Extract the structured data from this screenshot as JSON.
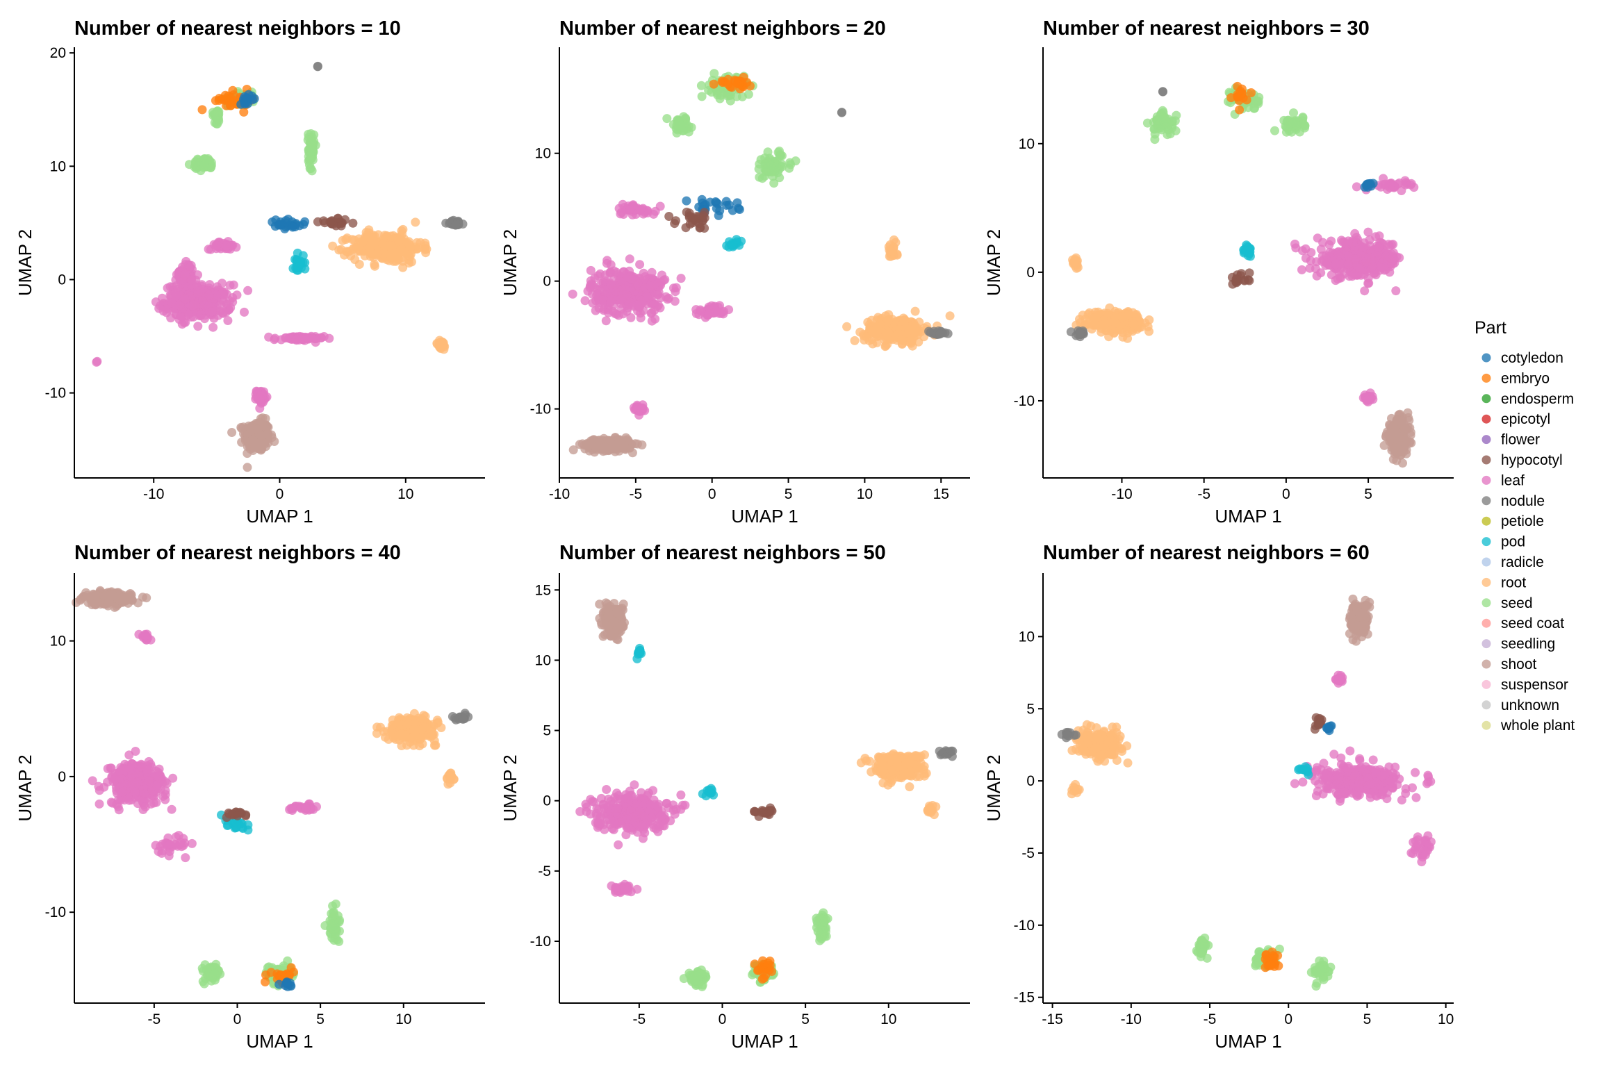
{
  "legend": {
    "title": "Part",
    "entries": [
      {
        "name": "cotyledon",
        "color": "#1f77b4"
      },
      {
        "name": "embryo",
        "color": "#ff7f0e"
      },
      {
        "name": "endosperm",
        "color": "#2ca02c"
      },
      {
        "name": "epicotyl",
        "color": "#d62728"
      },
      {
        "name": "flower",
        "color": "#9467bd"
      },
      {
        "name": "hypocotyl",
        "color": "#8c564b"
      },
      {
        "name": "leaf",
        "color": "#e377c2"
      },
      {
        "name": "nodule",
        "color": "#7f7f7f"
      },
      {
        "name": "petiole",
        "color": "#bcbd22"
      },
      {
        "name": "pod",
        "color": "#17becf"
      },
      {
        "name": "radicle",
        "color": "#aec7e8"
      },
      {
        "name": "root",
        "color": "#ffbb78"
      },
      {
        "name": "seed",
        "color": "#98df8a"
      },
      {
        "name": "seed coat",
        "color": "#ff9896"
      },
      {
        "name": "seedling",
        "color": "#c5b0d5"
      },
      {
        "name": "shoot",
        "color": "#c49c94"
      },
      {
        "name": "suspensor",
        "color": "#f7b6d2"
      },
      {
        "name": "unknown",
        "color": "#c7c7c7"
      },
      {
        "name": "whole plant",
        "color": "#dbdb8d"
      }
    ]
  },
  "chart_data": [
    {
      "type": "scatter",
      "title": "Number of nearest neighbors = 10",
      "xlabel": "UMAP 1",
      "ylabel": "UMAP 2",
      "xlim": [
        -16.3,
        16.3
      ],
      "ylim": [
        -17.5,
        20.5
      ],
      "xticks": [
        -10,
        0,
        10
      ],
      "yticks": [
        -10,
        0,
        10,
        20
      ],
      "clusters": [
        {
          "part": "shoot",
          "x": -1.8,
          "y": -13.8,
          "sx": 0.9,
          "sy": 1.2,
          "n": 260
        },
        {
          "part": "leaf",
          "x": -6.5,
          "y": -2.0,
          "sx": 2.4,
          "sy": 1.4,
          "n": 300
        },
        {
          "part": "leaf",
          "x": -7.5,
          "y": 0.5,
          "sx": 0.6,
          "sy": 1.0,
          "n": 60
        },
        {
          "part": "leaf",
          "x": -1.5,
          "y": -10.3,
          "sx": 0.3,
          "sy": 0.5,
          "n": 40
        },
        {
          "part": "leaf",
          "x": 1.5,
          "y": -5.2,
          "sx": 1.8,
          "sy": 0.2,
          "n": 60
        },
        {
          "part": "leaf",
          "x": -14.5,
          "y": -7.3,
          "sx": 0.1,
          "sy": 0.1,
          "n": 2
        },
        {
          "part": "leaf",
          "x": -4.5,
          "y": 3.0,
          "sx": 1.0,
          "sy": 0.3,
          "n": 40
        },
        {
          "part": "root",
          "x": 8.5,
          "y": 2.8,
          "sx": 2.5,
          "sy": 1.2,
          "n": 260
        },
        {
          "part": "root",
          "x": 12.8,
          "y": -5.8,
          "sx": 0.4,
          "sy": 0.4,
          "n": 30
        },
        {
          "part": "nodule",
          "x": 14.0,
          "y": 5.0,
          "sx": 0.6,
          "sy": 0.2,
          "n": 25
        },
        {
          "part": "seed",
          "x": -6.0,
          "y": 10.2,
          "sx": 0.8,
          "sy": 0.5,
          "n": 50
        },
        {
          "part": "seed",
          "x": -3.0,
          "y": 16.0,
          "sx": 1.0,
          "sy": 0.5,
          "n": 60
        },
        {
          "part": "seed",
          "x": -5.0,
          "y": 14.5,
          "sx": 0.3,
          "sy": 0.6,
          "n": 30
        },
        {
          "part": "seed",
          "x": 2.5,
          "y": 11.5,
          "sx": 0.2,
          "sy": 1.5,
          "n": 50
        },
        {
          "part": "embryo",
          "x": -3.5,
          "y": 15.8,
          "sx": 1.5,
          "sy": 0.7,
          "n": 30
        },
        {
          "part": "cotyledon",
          "x": -2.5,
          "y": 16.0,
          "sx": 0.6,
          "sy": 0.4,
          "n": 15
        },
        {
          "part": "cotyledon",
          "x": 0.5,
          "y": 4.8,
          "sx": 1.4,
          "sy": 0.4,
          "n": 25
        },
        {
          "part": "pod",
          "x": 1.5,
          "y": 1.5,
          "sx": 0.4,
          "sy": 0.8,
          "n": 25
        },
        {
          "part": "hypocotyl",
          "x": 4.5,
          "y": 5.0,
          "sx": 1.2,
          "sy": 0.3,
          "n": 20
        },
        {
          "part": "nodule",
          "x": 3.0,
          "y": 18.8,
          "sx": 0.05,
          "sy": 0.05,
          "n": 2
        }
      ]
    },
    {
      "type": "scatter",
      "title": "Number of nearest neighbors = 20",
      "xlabel": "UMAP 1",
      "ylabel": "UMAP 2",
      "xlim": [
        -10.0,
        16.9
      ],
      "ylim": [
        -15.4,
        18.3
      ],
      "xticks": [
        -10,
        -5,
        0,
        5,
        10,
        15
      ],
      "yticks": [
        -10,
        0,
        10
      ],
      "clusters": [
        {
          "part": "shoot",
          "x": -6.8,
          "y": -12.8,
          "sx": 1.4,
          "sy": 0.4,
          "n": 260
        },
        {
          "part": "leaf",
          "x": -5.5,
          "y": -0.8,
          "sx": 2.2,
          "sy": 1.6,
          "n": 320
        },
        {
          "part": "leaf",
          "x": -4.8,
          "y": -10.0,
          "sx": 0.3,
          "sy": 0.3,
          "n": 25
        },
        {
          "part": "leaf",
          "x": 0.0,
          "y": -2.3,
          "sx": 1.0,
          "sy": 0.4,
          "n": 40
        },
        {
          "part": "leaf",
          "x": -5.0,
          "y": 5.6,
          "sx": 1.2,
          "sy": 0.4,
          "n": 40
        },
        {
          "part": "root",
          "x": 12.0,
          "y": -3.8,
          "sx": 1.8,
          "sy": 0.9,
          "n": 260
        },
        {
          "part": "root",
          "x": 11.8,
          "y": 2.3,
          "sx": 0.3,
          "sy": 0.6,
          "n": 20
        },
        {
          "part": "nodule",
          "x": 14.7,
          "y": -4.1,
          "sx": 0.6,
          "sy": 0.2,
          "n": 20
        },
        {
          "part": "seed",
          "x": -2.0,
          "y": 12.2,
          "sx": 0.8,
          "sy": 0.6,
          "n": 50
        },
        {
          "part": "seed",
          "x": 1.0,
          "y": 15.2,
          "sx": 1.0,
          "sy": 0.8,
          "n": 70
        },
        {
          "part": "seed",
          "x": 4.0,
          "y": 9.0,
          "sx": 1.2,
          "sy": 1.0,
          "n": 60
        },
        {
          "part": "embryo",
          "x": 1.5,
          "y": 15.5,
          "sx": 1.0,
          "sy": 0.4,
          "n": 25
        },
        {
          "part": "cotyledon",
          "x": 0.0,
          "y": 5.8,
          "sx": 1.5,
          "sy": 0.5,
          "n": 25
        },
        {
          "part": "pod",
          "x": 1.5,
          "y": 3.0,
          "sx": 0.7,
          "sy": 0.3,
          "n": 15
        },
        {
          "part": "hypocotyl",
          "x": -1.0,
          "y": 4.8,
          "sx": 1.2,
          "sy": 0.6,
          "n": 25
        },
        {
          "part": "nodule",
          "x": 8.5,
          "y": 13.2,
          "sx": 0.05,
          "sy": 0.05,
          "n": 2
        }
      ]
    },
    {
      "type": "scatter",
      "title": "Number of nearest neighbors = 30",
      "xlabel": "UMAP 1",
      "ylabel": "UMAP 2",
      "xlim": [
        -14.8,
        10.2
      ],
      "ylim": [
        -16.0,
        17.5
      ],
      "xticks": [
        -10,
        -5,
        0,
        5
      ],
      "yticks": [
        -10,
        0,
        10
      ],
      "clusters": [
        {
          "part": "shoot",
          "x": 6.8,
          "y": -12.8,
          "sx": 0.6,
          "sy": 1.2,
          "n": 240
        },
        {
          "part": "leaf",
          "x": 4.5,
          "y": 1.0,
          "sx": 2.4,
          "sy": 1.3,
          "n": 320
        },
        {
          "part": "leaf",
          "x": 5.0,
          "y": -9.8,
          "sx": 0.2,
          "sy": 0.3,
          "n": 20
        },
        {
          "part": "leaf",
          "x": 6.5,
          "y": 6.8,
          "sx": 1.2,
          "sy": 0.3,
          "n": 30
        },
        {
          "part": "root",
          "x": -10.5,
          "y": -3.8,
          "sx": 1.5,
          "sy": 0.7,
          "n": 260
        },
        {
          "part": "root",
          "x": -12.8,
          "y": 0.8,
          "sx": 0.2,
          "sy": 0.4,
          "n": 15
        },
        {
          "part": "nodule",
          "x": -12.5,
          "y": -4.8,
          "sx": 0.5,
          "sy": 0.3,
          "n": 15
        },
        {
          "part": "seed",
          "x": -7.5,
          "y": 11.5,
          "sx": 0.7,
          "sy": 0.8,
          "n": 50
        },
        {
          "part": "seed",
          "x": -2.5,
          "y": 13.5,
          "sx": 0.8,
          "sy": 0.8,
          "n": 50
        },
        {
          "part": "seed",
          "x": 0.5,
          "y": 11.5,
          "sx": 0.6,
          "sy": 0.6,
          "n": 40
        },
        {
          "part": "embryo",
          "x": -2.8,
          "y": 13.8,
          "sx": 0.4,
          "sy": 0.8,
          "n": 15
        },
        {
          "part": "pod",
          "x": -2.3,
          "y": 1.5,
          "sx": 0.3,
          "sy": 0.6,
          "n": 15
        },
        {
          "part": "hypocotyl",
          "x": -2.8,
          "y": -0.5,
          "sx": 0.5,
          "sy": 0.5,
          "n": 15
        },
        {
          "part": "cotyledon",
          "x": 5.0,
          "y": 6.8,
          "sx": 0.3,
          "sy": 0.2,
          "n": 10
        },
        {
          "part": "nodule",
          "x": -7.5,
          "y": 14.0,
          "sx": 0.05,
          "sy": 0.05,
          "n": 2
        }
      ]
    },
    {
      "type": "scatter",
      "title": "Number of nearest neighbors = 40",
      "xlabel": "UMAP 1",
      "ylabel": "UMAP 2",
      "xlim": [
        -9.8,
        14.9
      ],
      "ylim": [
        -16.7,
        15.0
      ],
      "xticks": [
        -5,
        0,
        5,
        10
      ],
      "yticks": [
        -10,
        0,
        10
      ],
      "clusters": [
        {
          "part": "shoot",
          "x": -7.8,
          "y": 13.1,
          "sx": 1.3,
          "sy": 0.4,
          "n": 220
        },
        {
          "part": "leaf",
          "x": -6.0,
          "y": -0.5,
          "sx": 1.6,
          "sy": 1.4,
          "n": 300
        },
        {
          "part": "leaf",
          "x": -5.5,
          "y": 10.3,
          "sx": 0.3,
          "sy": 0.2,
          "n": 15
        },
        {
          "part": "leaf",
          "x": 4.0,
          "y": -2.3,
          "sx": 0.8,
          "sy": 0.2,
          "n": 30
        },
        {
          "part": "leaf",
          "x": -4.0,
          "y": -5.0,
          "sx": 1.0,
          "sy": 0.6,
          "n": 30
        },
        {
          "part": "root",
          "x": 10.5,
          "y": 3.5,
          "sx": 1.3,
          "sy": 0.8,
          "n": 240
        },
        {
          "part": "root",
          "x": 12.8,
          "y": 0.0,
          "sx": 0.2,
          "sy": 0.5,
          "n": 15
        },
        {
          "part": "nodule",
          "x": 13.5,
          "y": 4.3,
          "sx": 0.5,
          "sy": 0.2,
          "n": 15
        },
        {
          "part": "seed",
          "x": -1.5,
          "y": -14.5,
          "sx": 0.5,
          "sy": 0.6,
          "n": 50
        },
        {
          "part": "seed",
          "x": 2.5,
          "y": -14.5,
          "sx": 0.7,
          "sy": 0.6,
          "n": 50
        },
        {
          "part": "seed",
          "x": 5.8,
          "y": -11.0,
          "sx": 0.3,
          "sy": 1.2,
          "n": 40
        },
        {
          "part": "embryo",
          "x": 2.5,
          "y": -14.8,
          "sx": 0.8,
          "sy": 0.5,
          "n": 20
        },
        {
          "part": "cotyledon",
          "x": 3.0,
          "y": -15.3,
          "sx": 0.3,
          "sy": 0.2,
          "n": 10
        },
        {
          "part": "pod",
          "x": 0.0,
          "y": -3.5,
          "sx": 0.7,
          "sy": 0.6,
          "n": 20
        },
        {
          "part": "hypocotyl",
          "x": 0.0,
          "y": -2.8,
          "sx": 0.5,
          "sy": 0.3,
          "n": 15
        }
      ]
    },
    {
      "type": "scatter",
      "title": "Number of nearest neighbors = 50",
      "xlabel": "UMAP 1",
      "ylabel": "UMAP 2",
      "xlim": [
        -9.8,
        14.9
      ],
      "ylim": [
        -14.4,
        16.2
      ],
      "xticks": [
        -5,
        0,
        5,
        10
      ],
      "yticks": [
        -10,
        -5,
        0,
        5,
        10,
        15
      ],
      "clusters": [
        {
          "part": "shoot",
          "x": -6.5,
          "y": 12.8,
          "sx": 0.5,
          "sy": 1.0,
          "n": 220
        },
        {
          "part": "leaf",
          "x": -5.5,
          "y": -0.8,
          "sx": 2.0,
          "sy": 1.2,
          "n": 300
        },
        {
          "part": "leaf",
          "x": -6.0,
          "y": -6.3,
          "sx": 0.6,
          "sy": 0.3,
          "n": 30
        },
        {
          "part": "pod",
          "x": -5.0,
          "y": 10.6,
          "sx": 0.3,
          "sy": 0.3,
          "n": 10
        },
        {
          "part": "pod",
          "x": -0.8,
          "y": 0.5,
          "sx": 0.3,
          "sy": 0.3,
          "n": 10
        },
        {
          "part": "root",
          "x": 10.5,
          "y": 2.5,
          "sx": 1.4,
          "sy": 0.8,
          "n": 240
        },
        {
          "part": "root",
          "x": 12.5,
          "y": -0.6,
          "sx": 0.3,
          "sy": 0.4,
          "n": 15
        },
        {
          "part": "nodule",
          "x": 13.5,
          "y": 3.4,
          "sx": 0.5,
          "sy": 0.2,
          "n": 15
        },
        {
          "part": "seed",
          "x": -1.5,
          "y": -12.6,
          "sx": 0.5,
          "sy": 0.5,
          "n": 50
        },
        {
          "part": "seed",
          "x": 2.5,
          "y": -12.3,
          "sx": 0.6,
          "sy": 0.6,
          "n": 50
        },
        {
          "part": "seed",
          "x": 6.0,
          "y": -9.0,
          "sx": 0.3,
          "sy": 1.0,
          "n": 40
        },
        {
          "part": "embryo",
          "x": 2.5,
          "y": -12.0,
          "sx": 0.5,
          "sy": 0.6,
          "n": 20
        },
        {
          "part": "hypocotyl",
          "x": 2.5,
          "y": -0.8,
          "sx": 0.6,
          "sy": 0.3,
          "n": 20
        }
      ]
    },
    {
      "type": "scatter",
      "title": "Number of nearest neighbors = 60",
      "xlabel": "UMAP 1",
      "ylabel": "UMAP 2",
      "xlim": [
        -15.6,
        10.5
      ],
      "ylim": [
        -15.4,
        14.4
      ],
      "xticks": [
        -15,
        -10,
        -5,
        0,
        5,
        10
      ],
      "yticks": [
        -15,
        -10,
        -5,
        0,
        5,
        10
      ],
      "clusters": [
        {
          "part": "shoot",
          "x": 4.5,
          "y": 11.2,
          "sx": 0.5,
          "sy": 1.0,
          "n": 220
        },
        {
          "part": "leaf",
          "x": 4.5,
          "y": 0.0,
          "sx": 2.5,
          "sy": 1.0,
          "n": 320
        },
        {
          "part": "leaf",
          "x": 3.2,
          "y": 7.0,
          "sx": 0.2,
          "sy": 0.3,
          "n": 15
        },
        {
          "part": "leaf",
          "x": 8.5,
          "y": -4.5,
          "sx": 0.6,
          "sy": 0.7,
          "n": 30
        },
        {
          "part": "root",
          "x": -12.0,
          "y": 2.5,
          "sx": 1.2,
          "sy": 0.8,
          "n": 240
        },
        {
          "part": "root",
          "x": -13.5,
          "y": -0.6,
          "sx": 0.3,
          "sy": 0.3,
          "n": 10
        },
        {
          "part": "nodule",
          "x": -14.0,
          "y": 3.2,
          "sx": 0.5,
          "sy": 0.2,
          "n": 10
        },
        {
          "part": "seed",
          "x": -5.5,
          "y": -11.5,
          "sx": 0.3,
          "sy": 0.8,
          "n": 30
        },
        {
          "part": "seed",
          "x": -1.5,
          "y": -12.3,
          "sx": 0.6,
          "sy": 0.6,
          "n": 45
        },
        {
          "part": "seed",
          "x": 2.0,
          "y": -13.2,
          "sx": 0.5,
          "sy": 0.6,
          "n": 40
        },
        {
          "part": "embryo",
          "x": -1.0,
          "y": -12.5,
          "sx": 0.5,
          "sy": 0.6,
          "n": 20
        },
        {
          "part": "hypocotyl",
          "x": 2.0,
          "y": 4.0,
          "sx": 0.3,
          "sy": 0.3,
          "n": 15
        },
        {
          "part": "cotyledon",
          "x": 2.5,
          "y": 3.6,
          "sx": 0.2,
          "sy": 0.2,
          "n": 8
        },
        {
          "part": "pod",
          "x": 1.0,
          "y": 0.8,
          "sx": 0.3,
          "sy": 0.3,
          "n": 10
        }
      ]
    }
  ]
}
